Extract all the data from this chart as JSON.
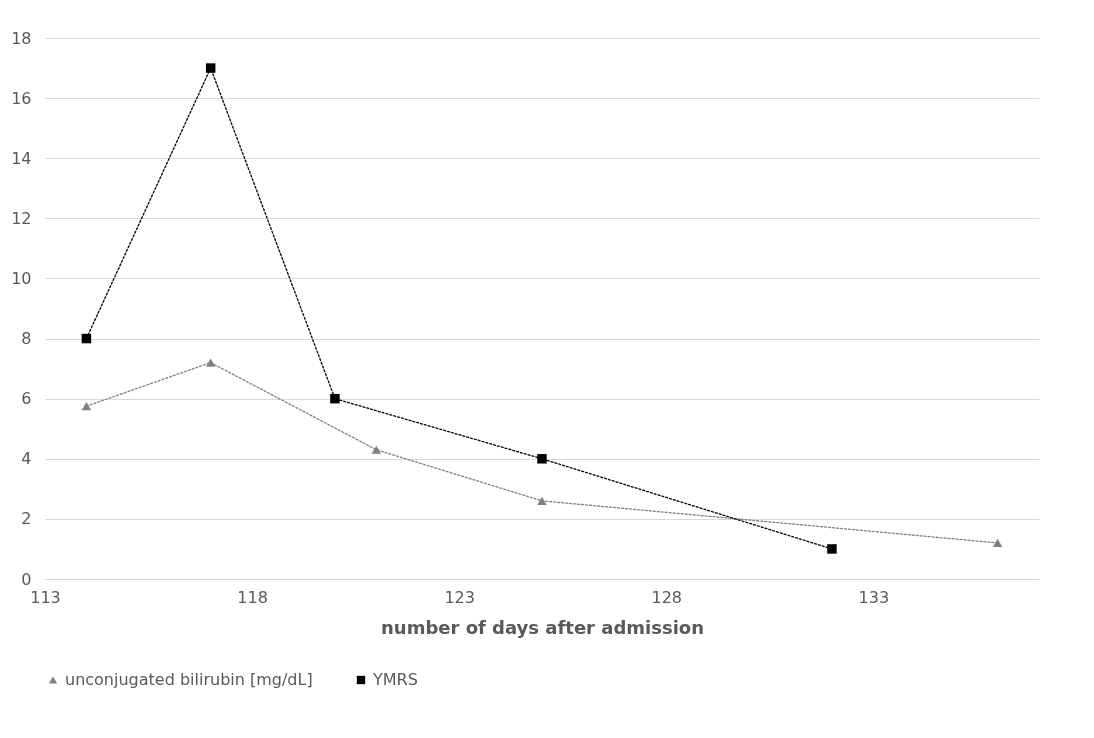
{
  "chart_data": {
    "type": "line",
    "xlabel": "number of days after admission",
    "xlim": [
      113,
      137
    ],
    "xticks": [
      113,
      118,
      123,
      128,
      133
    ],
    "ylim": [
      0,
      18
    ],
    "yticks": [
      0,
      2,
      4,
      6,
      8,
      10,
      12,
      14,
      16,
      18
    ],
    "grid": "y",
    "legend": "bottom",
    "line_style": "dotted",
    "series": [
      {
        "name": "unconjugated bilirubin [mg/dL]",
        "color": "#808080",
        "marker": "triangle",
        "x": [
          114,
          117,
          121,
          125,
          136
        ],
        "values": [
          5.75,
          7.2,
          4.3,
          2.6,
          1.2
        ]
      },
      {
        "name": "YMRS",
        "color": "#000000",
        "marker": "square",
        "x": [
          114,
          117,
          120,
          125,
          132
        ],
        "values": [
          8,
          17,
          6,
          4,
          1
        ]
      }
    ]
  }
}
